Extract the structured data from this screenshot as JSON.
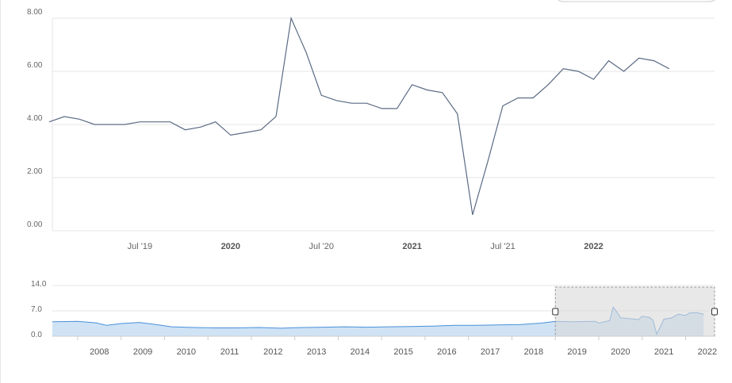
{
  "colors": {
    "main_line": "#5b6b84",
    "nav_line": "#4a90d9",
    "nav_fill": "#cfe3f5",
    "grid": "#e6e6e6",
    "mask": "#d9d9d9"
  },
  "chart_data": [
    {
      "type": "line",
      "x_range": [
        "2019-01",
        "2022-09"
      ],
      "ylim": [
        0,
        8
      ],
      "grid": true,
      "y_tick_labels": [
        "0.00",
        "2.00",
        "4.00",
        "6.00",
        "8.00"
      ],
      "x_tick_labels": [
        {
          "label": "Jul '19",
          "at": "2019-07",
          "bold": false
        },
        {
          "label": "2020",
          "at": "2020-01",
          "bold": true
        },
        {
          "label": "Jul '20",
          "at": "2020-07",
          "bold": false
        },
        {
          "label": "2021",
          "at": "2021-01",
          "bold": true
        },
        {
          "label": "Jul '21",
          "at": "2021-07",
          "bold": false
        },
        {
          "label": "2022",
          "at": "2022-01",
          "bold": true
        }
      ],
      "series": [
        {
          "points": [
            [
              "2019-01",
              4.1
            ],
            [
              "2019-02",
              4.3
            ],
            [
              "2019-03",
              4.2
            ],
            [
              "2019-04",
              4.0
            ],
            [
              "2019-05",
              4.0
            ],
            [
              "2019-06",
              4.0
            ],
            [
              "2019-07",
              4.1
            ],
            [
              "2019-08",
              4.1
            ],
            [
              "2019-09",
              4.1
            ],
            [
              "2019-10",
              3.8
            ],
            [
              "2019-11",
              3.9
            ],
            [
              "2019-12",
              4.1
            ],
            [
              "2020-01",
              3.6
            ],
            [
              "2020-02",
              3.7
            ],
            [
              "2020-03",
              3.8
            ],
            [
              "2020-04",
              4.3
            ],
            [
              "2020-05",
              8.0
            ],
            [
              "2020-06",
              6.7
            ],
            [
              "2020-07",
              5.1
            ],
            [
              "2020-08",
              4.9
            ],
            [
              "2020-09",
              4.8
            ],
            [
              "2020-10",
              4.8
            ],
            [
              "2020-11",
              4.6
            ],
            [
              "2020-12",
              4.6
            ],
            [
              "2021-01",
              5.5
            ],
            [
              "2021-02",
              5.3
            ],
            [
              "2021-03",
              5.2
            ],
            [
              "2021-04",
              4.4
            ],
            [
              "2021-05",
              0.6
            ],
            [
              "2021-06",
              2.6
            ],
            [
              "2021-07",
              4.7
            ],
            [
              "2021-08",
              5.0
            ],
            [
              "2021-09",
              5.0
            ],
            [
              "2021-10",
              5.5
            ],
            [
              "2021-11",
              6.1
            ],
            [
              "2021-12",
              6.0
            ],
            [
              "2022-01",
              5.7
            ],
            [
              "2022-02",
              6.4
            ],
            [
              "2022-03",
              6.0
            ],
            [
              "2022-04",
              6.5
            ],
            [
              "2022-05",
              6.4
            ],
            [
              "2022-06",
              6.1
            ]
          ]
        }
      ]
    },
    {
      "type": "area",
      "role": "navigator",
      "x_range": [
        "2007-06",
        "2022-09"
      ],
      "ylim": [
        0,
        14
      ],
      "grid": true,
      "y_tick_labels": [
        "0.0",
        "7.0",
        "14.0"
      ],
      "x_tick_labels": [
        "2008",
        "2009",
        "2010",
        "2011",
        "2012",
        "2013",
        "2014",
        "2015",
        "2016",
        "2017",
        "2018",
        "2019",
        "2020",
        "2021",
        "2022"
      ],
      "selected_range": [
        "2019-01",
        "2022-09"
      ],
      "series": [
        {
          "points": [
            [
              "2007-06",
              4.0
            ],
            [
              "2008-01",
              4.1
            ],
            [
              "2008-06",
              3.7
            ],
            [
              "2008-09",
              3.0
            ],
            [
              "2009-01",
              3.5
            ],
            [
              "2009-06",
              3.8
            ],
            [
              "2009-10",
              3.3
            ],
            [
              "2010-03",
              2.6
            ],
            [
              "2010-09",
              2.4
            ],
            [
              "2011-03",
              2.3
            ],
            [
              "2011-09",
              2.3
            ],
            [
              "2012-03",
              2.4
            ],
            [
              "2012-09",
              2.2
            ],
            [
              "2013-03",
              2.4
            ],
            [
              "2013-09",
              2.5
            ],
            [
              "2014-03",
              2.6
            ],
            [
              "2014-09",
              2.5
            ],
            [
              "2015-03",
              2.6
            ],
            [
              "2015-09",
              2.7
            ],
            [
              "2016-03",
              2.8
            ],
            [
              "2016-09",
              3.0
            ],
            [
              "2017-03",
              3.0
            ],
            [
              "2017-09",
              3.1
            ],
            [
              "2018-03",
              3.2
            ],
            [
              "2018-09",
              3.6
            ],
            [
              "2019-01",
              4.1
            ],
            [
              "2019-06",
              4.0
            ],
            [
              "2019-12",
              4.1
            ],
            [
              "2020-01",
              3.6
            ],
            [
              "2020-04",
              4.3
            ],
            [
              "2020-05",
              8.0
            ],
            [
              "2020-06",
              6.7
            ],
            [
              "2020-07",
              5.1
            ],
            [
              "2020-12",
              4.6
            ],
            [
              "2021-01",
              5.5
            ],
            [
              "2021-03",
              5.2
            ],
            [
              "2021-04",
              4.4
            ],
            [
              "2021-05",
              0.6
            ],
            [
              "2021-06",
              2.6
            ],
            [
              "2021-07",
              4.7
            ],
            [
              "2021-09",
              5.0
            ],
            [
              "2021-11",
              6.1
            ],
            [
              "2022-01",
              5.7
            ],
            [
              "2022-02",
              6.4
            ],
            [
              "2022-04",
              6.5
            ],
            [
              "2022-06",
              6.1
            ]
          ]
        }
      ]
    }
  ]
}
